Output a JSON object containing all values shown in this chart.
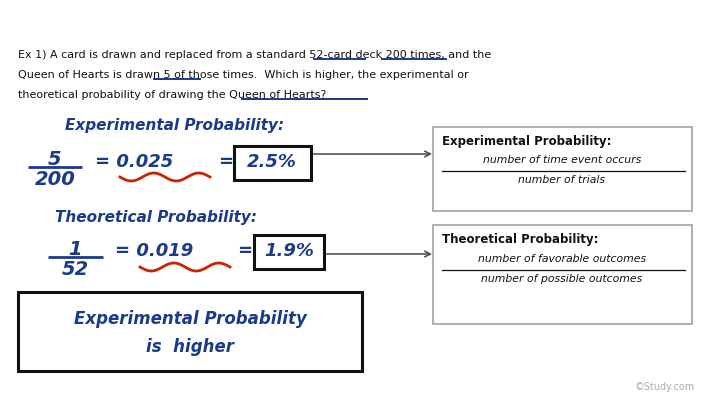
{
  "bg_color": "#ffffff",
  "q_line1": "Ex 1) A card is drawn and replaced from a standard 52-card deck 200 times, and the",
  "q_line2": "Queen of Hearts is drawn 5 of those times.  Which is higher, the experimental or",
  "q_line3": "theoretical probability of drawing the Queen of Hearts?",
  "exp_label": "Experimental Probability:",
  "exp_num": "5",
  "exp_den": "200",
  "exp_eq1": "= 0.025",
  "exp_eq2": "=",
  "exp_pct": "2.5%",
  "theo_label": "Theoretical Probability:",
  "theo_num": "1",
  "theo_den": "52",
  "theo_eq1": "= 0.019",
  "theo_eq2": "=",
  "theo_pct": "1.9%",
  "conc1": "Experimental Probability",
  "conc2": "is  higher",
  "b1_title": "Experimental Probability:",
  "b1_line1": "number of time event occurs",
  "b1_line2": "number of trials",
  "b2_title": "Theoretical Probability:",
  "b2_line1": "number of favorable outcomes",
  "b2_line2": "number of possible outcomes",
  "hw_color": "#1a3a8a",
  "sq_color": "#cc2200",
  "tc": "#111111",
  "ul_color": "#1a3a8a",
  "watermark": "©Study.com"
}
